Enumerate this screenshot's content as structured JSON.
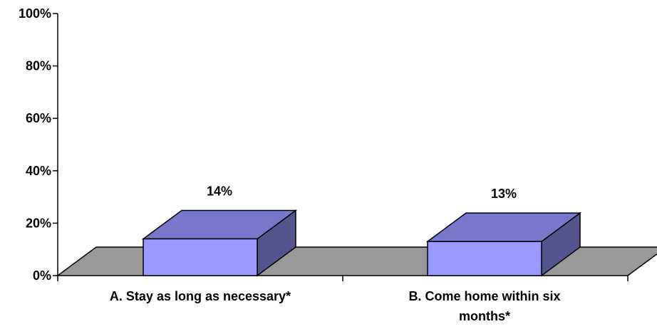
{
  "chart_data": {
    "type": "bar",
    "title": "",
    "xlabel": "",
    "ylabel": "",
    "categories": [
      [
        "A. Stay as long as necessary*"
      ],
      [
        "B. Come home within six",
        "months*"
      ]
    ],
    "values": [
      14,
      13
    ],
    "data_labels": [
      "14%",
      "13%"
    ],
    "ylim": [
      0,
      100
    ],
    "y_ticks": [
      "0%",
      "20%",
      "40%",
      "60%",
      "80%",
      "100%"
    ],
    "y_tick_values": [
      0,
      20,
      40,
      60,
      80,
      100
    ],
    "three_d": true,
    "grid": false,
    "legend": "none",
    "colors": {
      "bar_front": "#9999ff",
      "bar_top": "#7777cc",
      "bar_side": "#55558e",
      "floor": "#999999",
      "axis": "#000000"
    }
  }
}
